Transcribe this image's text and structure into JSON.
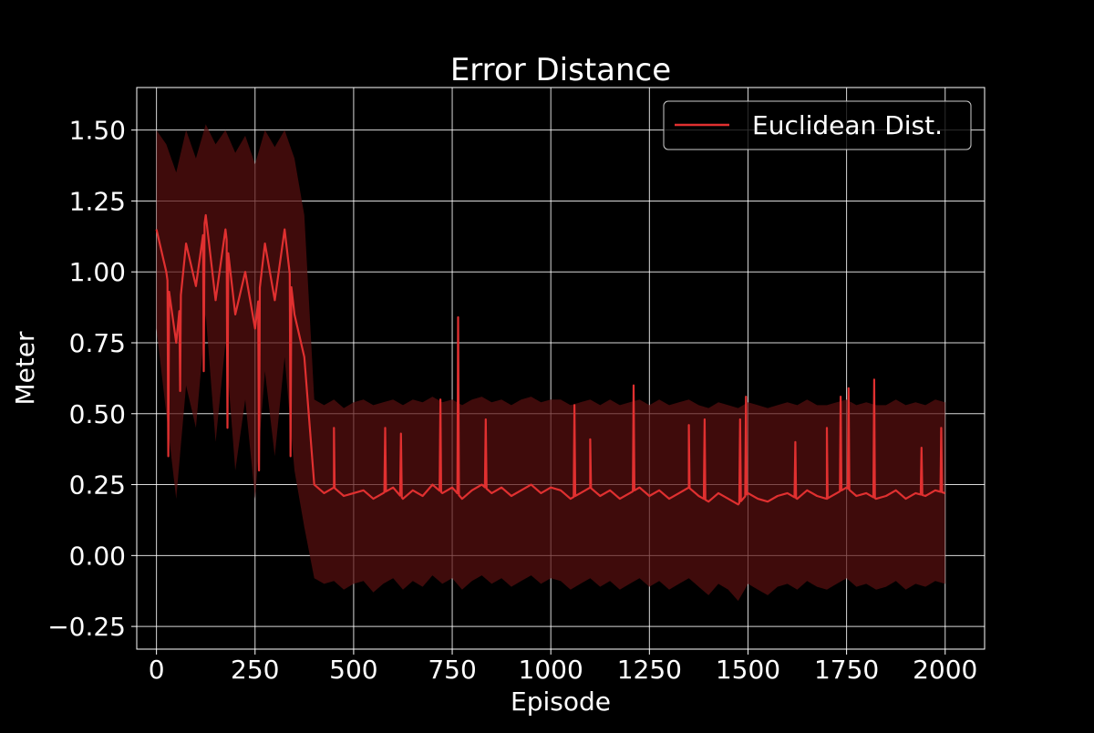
{
  "chart_data": {
    "type": "line",
    "title": "Error Distance",
    "xlabel": "Episode",
    "ylabel": "Meter",
    "xlim": [
      -50,
      2100
    ],
    "ylim": [
      -0.33,
      1.65
    ],
    "xticks": [
      0,
      250,
      500,
      750,
      1000,
      1250,
      1500,
      1750,
      2000
    ],
    "xtick_labels": [
      "0",
      "250",
      "500",
      "750",
      "1000",
      "1250",
      "1500",
      "1750",
      "2000"
    ],
    "yticks": [
      -0.25,
      0.0,
      0.25,
      0.5,
      0.75,
      1.0,
      1.25,
      1.5
    ],
    "ytick_labels": [
      "−0.25",
      "0.00",
      "0.25",
      "0.50",
      "0.75",
      "1.00",
      "1.25",
      "1.50"
    ],
    "grid": true,
    "legend_position": "top-right",
    "background": "#000000",
    "series": [
      {
        "name": "Euclidean Dist.",
        "color": "#e03030",
        "band_color": "#5a1010",
        "x": [
          0,
          25,
          50,
          75,
          100,
          125,
          150,
          175,
          200,
          225,
          250,
          275,
          300,
          325,
          350,
          375,
          400,
          425,
          450,
          475,
          500,
          525,
          550,
          575,
          600,
          625,
          650,
          675,
          700,
          725,
          750,
          775,
          800,
          825,
          850,
          875,
          900,
          925,
          950,
          975,
          1000,
          1025,
          1050,
          1075,
          1100,
          1125,
          1150,
          1175,
          1200,
          1225,
          1250,
          1275,
          1300,
          1325,
          1350,
          1375,
          1400,
          1425,
          1450,
          1475,
          1500,
          1525,
          1550,
          1575,
          1600,
          1625,
          1650,
          1675,
          1700,
          1725,
          1750,
          1775,
          1800,
          1825,
          1850,
          1875,
          1900,
          1925,
          1950,
          1975,
          2000
        ],
        "mean": [
          1.15,
          1.0,
          0.75,
          1.1,
          0.95,
          1.2,
          0.9,
          1.15,
          0.85,
          1.0,
          0.8,
          1.1,
          0.9,
          1.15,
          0.85,
          0.7,
          0.25,
          0.22,
          0.24,
          0.21,
          0.22,
          0.23,
          0.2,
          0.22,
          0.24,
          0.2,
          0.23,
          0.21,
          0.25,
          0.22,
          0.24,
          0.2,
          0.23,
          0.25,
          0.22,
          0.24,
          0.21,
          0.23,
          0.25,
          0.22,
          0.24,
          0.23,
          0.2,
          0.22,
          0.24,
          0.21,
          0.23,
          0.2,
          0.22,
          0.24,
          0.21,
          0.23,
          0.2,
          0.22,
          0.24,
          0.21,
          0.19,
          0.22,
          0.2,
          0.18,
          0.22,
          0.2,
          0.19,
          0.21,
          0.22,
          0.2,
          0.23,
          0.21,
          0.2,
          0.22,
          0.24,
          0.21,
          0.22,
          0.2,
          0.21,
          0.23,
          0.2,
          0.22,
          0.21,
          0.23,
          0.22
        ],
        "upper": [
          1.5,
          1.45,
          1.35,
          1.5,
          1.4,
          1.52,
          1.45,
          1.5,
          1.42,
          1.48,
          1.38,
          1.5,
          1.44,
          1.5,
          1.4,
          1.2,
          0.55,
          0.53,
          0.55,
          0.52,
          0.54,
          0.55,
          0.53,
          0.54,
          0.55,
          0.53,
          0.55,
          0.54,
          0.56,
          0.54,
          0.55,
          0.53,
          0.55,
          0.56,
          0.54,
          0.55,
          0.53,
          0.55,
          0.56,
          0.54,
          0.55,
          0.55,
          0.53,
          0.54,
          0.55,
          0.53,
          0.55,
          0.53,
          0.54,
          0.55,
          0.53,
          0.55,
          0.53,
          0.54,
          0.55,
          0.53,
          0.52,
          0.54,
          0.53,
          0.52,
          0.54,
          0.53,
          0.52,
          0.53,
          0.54,
          0.53,
          0.55,
          0.53,
          0.53,
          0.54,
          0.55,
          0.53,
          0.54,
          0.53,
          0.53,
          0.55,
          0.53,
          0.54,
          0.53,
          0.55,
          0.54
        ],
        "lower": [
          0.8,
          0.5,
          0.2,
          0.6,
          0.45,
          0.85,
          0.4,
          0.75,
          0.3,
          0.55,
          0.2,
          0.65,
          0.35,
          0.7,
          0.3,
          0.1,
          -0.08,
          -0.1,
          -0.09,
          -0.12,
          -0.1,
          -0.09,
          -0.13,
          -0.1,
          -0.08,
          -0.12,
          -0.09,
          -0.11,
          -0.07,
          -0.1,
          -0.08,
          -0.12,
          -0.09,
          -0.07,
          -0.1,
          -0.08,
          -0.11,
          -0.09,
          -0.07,
          -0.1,
          -0.08,
          -0.09,
          -0.12,
          -0.1,
          -0.08,
          -0.11,
          -0.09,
          -0.12,
          -0.1,
          -0.08,
          -0.11,
          -0.09,
          -0.12,
          -0.1,
          -0.08,
          -0.11,
          -0.14,
          -0.1,
          -0.12,
          -0.16,
          -0.1,
          -0.12,
          -0.14,
          -0.11,
          -0.1,
          -0.12,
          -0.09,
          -0.11,
          -0.12,
          -0.1,
          -0.08,
          -0.11,
          -0.1,
          -0.12,
          -0.11,
          -0.09,
          -0.12,
          -0.1,
          -0.11,
          -0.09,
          -0.1
        ]
      }
    ],
    "spikes": {
      "x": [
        30,
        60,
        120,
        180,
        260,
        340,
        450,
        580,
        620,
        720,
        765,
        835,
        1060,
        1100,
        1210,
        1350,
        1390,
        1480,
        1495,
        1620,
        1700,
        1735,
        1755,
        1820,
        1940,
        1990
      ],
      "y": [
        0.35,
        0.58,
        0.65,
        0.45,
        0.3,
        0.35,
        0.45,
        0.45,
        0.43,
        0.55,
        0.84,
        0.48,
        0.53,
        0.41,
        0.6,
        0.46,
        0.48,
        0.48,
        0.56,
        0.4,
        0.45,
        0.56,
        0.59,
        0.62,
        0.38,
        0.45
      ]
    }
  }
}
